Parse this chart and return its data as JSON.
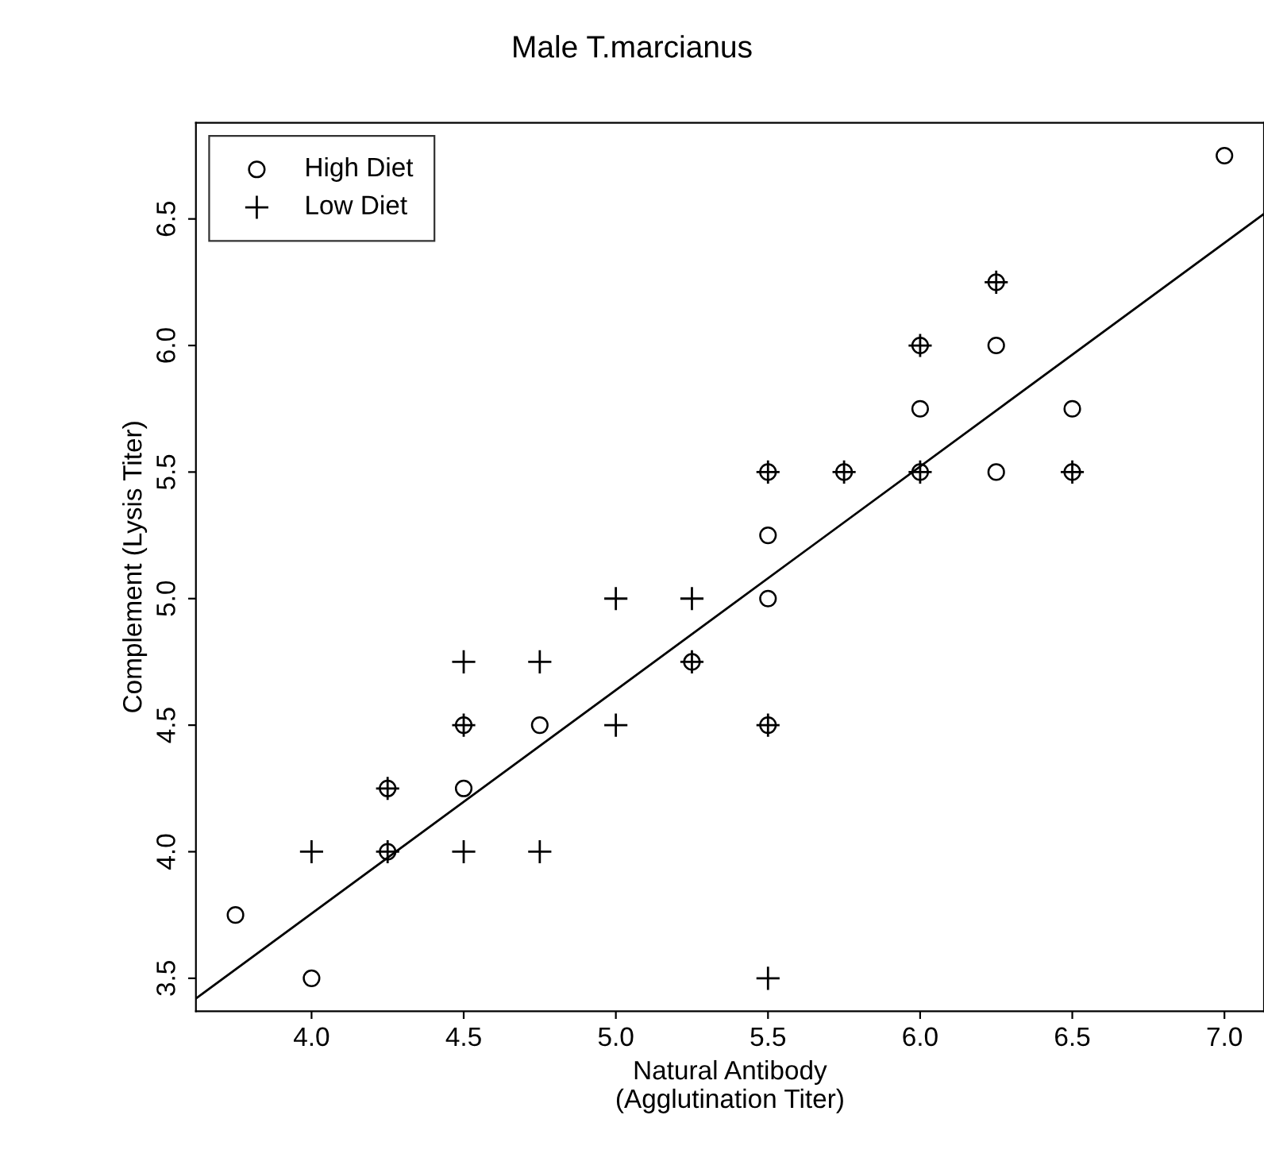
{
  "chart_data": {
    "type": "scatter",
    "title": "Male T.marcianus",
    "xlabel": "Natural Antibody\n(Agglutination Titer)",
    "ylabel": "Complement (Lysis Titer)",
    "xlim": [
      3.62,
      7.13
    ],
    "ylim": [
      3.37,
      6.88
    ],
    "xticks": [
      {
        "value": 4,
        "label": "4.0"
      },
      4.5,
      {
        "value": 5,
        "label": "5.0"
      },
      5.5,
      {
        "value": 6,
        "label": "6.0"
      },
      6.5,
      {
        "value": 7,
        "label": "7.0"
      }
    ],
    "yticks": [
      3.5,
      {
        "value": 4,
        "label": "4.0"
      },
      4.5,
      {
        "value": 5,
        "label": "5.0"
      },
      5.5,
      {
        "value": 6,
        "label": "6.0"
      },
      6.5
    ],
    "grid": false,
    "legend": "top left",
    "series": [
      {
        "name": "High Diet",
        "color": "#000000",
        "marker": "circle",
        "x": [
          3.75,
          4.0,
          4.25,
          4.25,
          4.5,
          4.5,
          4.75,
          5.25,
          5.5,
          5.5,
          5.5,
          5.5,
          5.75,
          6.0,
          6.0,
          6.0,
          6.25,
          6.25,
          6.25,
          6.5,
          6.5,
          7.0
        ],
        "values": [
          3.75,
          3.5,
          4.0,
          4.25,
          4.5,
          4.25,
          4.5,
          4.75,
          4.5,
          5.0,
          5.25,
          5.5,
          5.5,
          5.5,
          5.75,
          6.0,
          5.5,
          6.0,
          6.25,
          5.5,
          5.75,
          6.75
        ]
      },
      {
        "name": "Low Diet",
        "color": "#000000",
        "marker": "cross",
        "x": [
          4.0,
          4.25,
          4.25,
          4.5,
          4.5,
          4.5,
          4.75,
          4.75,
          5.0,
          5.0,
          5.25,
          5.25,
          5.5,
          5.5,
          5.5,
          5.75,
          6.0,
          6.0,
          6.25,
          6.5
        ],
        "values": [
          4.0,
          4.0,
          4.25,
          4.0,
          4.5,
          4.75,
          4.0,
          4.75,
          4.5,
          5.0,
          4.75,
          5.0,
          3.5,
          4.5,
          5.5,
          5.5,
          5.5,
          6.0,
          6.25,
          5.5
        ]
      },
      {
        "type": "line",
        "color": "#000000",
        "x": [
          3.62,
          7.13
        ],
        "values": [
          3.42,
          6.52
        ]
      }
    ]
  }
}
